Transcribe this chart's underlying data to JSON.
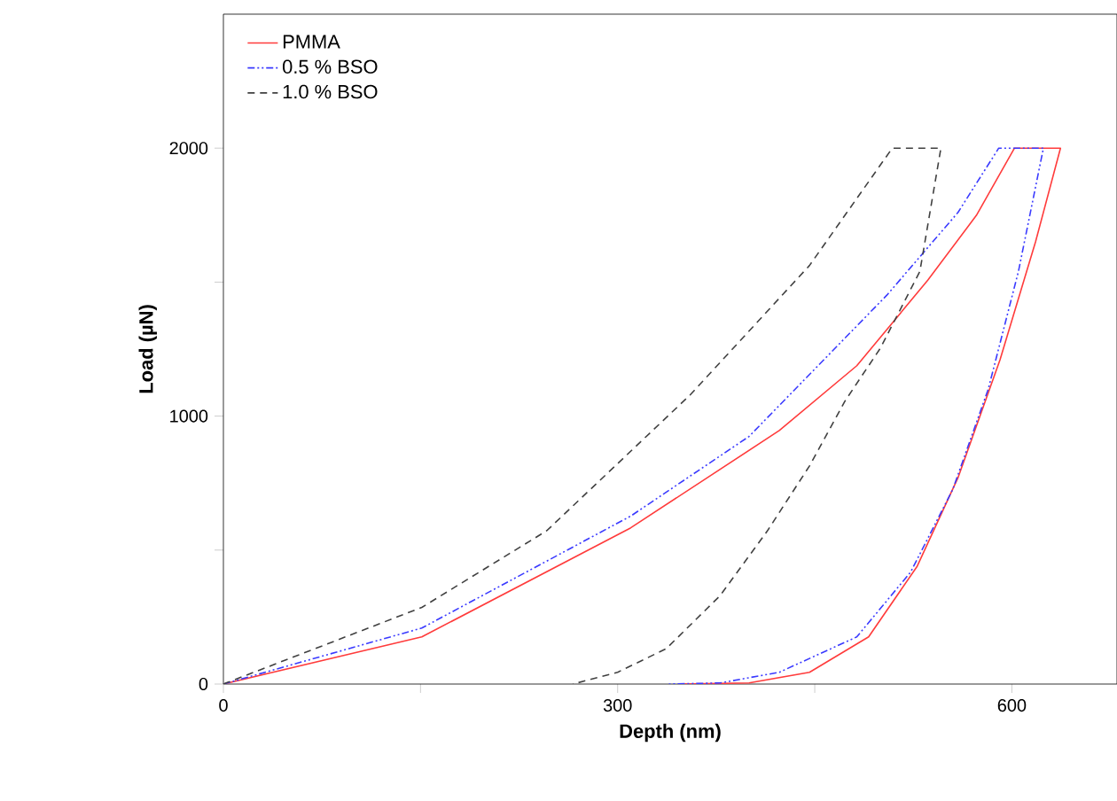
{
  "chart_data": {
    "type": "line",
    "xlabel": "Depth (nm)",
    "ylabel": "Load (µN)",
    "xlim": [
      0,
      680
    ],
    "ylim": [
      0,
      2500
    ],
    "xticks": [
      0,
      {
        "value": 150,
        "label": null
      },
      300,
      {
        "value": 450,
        "label": null
      },
      600
    ],
    "yticks": [
      0,
      {
        "value": 500,
        "label": null
      },
      1000,
      {
        "value": 1500,
        "label": null
      },
      2000
    ],
    "legend": "top left",
    "grid": false,
    "series": [
      {
        "name": "PMMA",
        "color": "#ff3b3b",
        "line_style": "solid",
        "x": [
          0,
          151,
          310,
          423,
          482,
          536,
          573,
          602,
          637,
          618,
          591,
          559,
          528,
          491,
          446,
          400,
          346
        ],
        "values": [
          0,
          176,
          583,
          946,
          1188,
          1507,
          1749,
          2000,
          2000,
          1650,
          1210,
          770,
          440,
          176,
          44,
          4,
          0
        ]
      },
      {
        "name": "0.5 % BSO",
        "color": "#3a3aff",
        "line_style": "dashdotdotted",
        "x": [
          0,
          151,
          310,
          400,
          505,
          559,
          590,
          624,
          605,
          582,
          555,
          523,
          482,
          423,
          378,
          339
        ],
        "values": [
          0,
          209,
          627,
          924,
          1452,
          1760,
          2000,
          2000,
          1540,
          1100,
          726,
          418,
          176,
          44,
          4,
          0
        ]
      },
      {
        "name": "1.0 % BSO",
        "color": "#404040",
        "line_style": "dashed",
        "x": [
          0,
          151,
          246,
          355,
          446,
          509,
          546,
          530,
          500,
          473,
          446,
          414,
          378,
          337,
          300,
          266
        ],
        "values": [
          0,
          286,
          572,
          1078,
          1562,
          2000,
          2000,
          1540,
          1254,
          1056,
          814,
          572,
          330,
          132,
          44,
          0
        ]
      }
    ]
  }
}
